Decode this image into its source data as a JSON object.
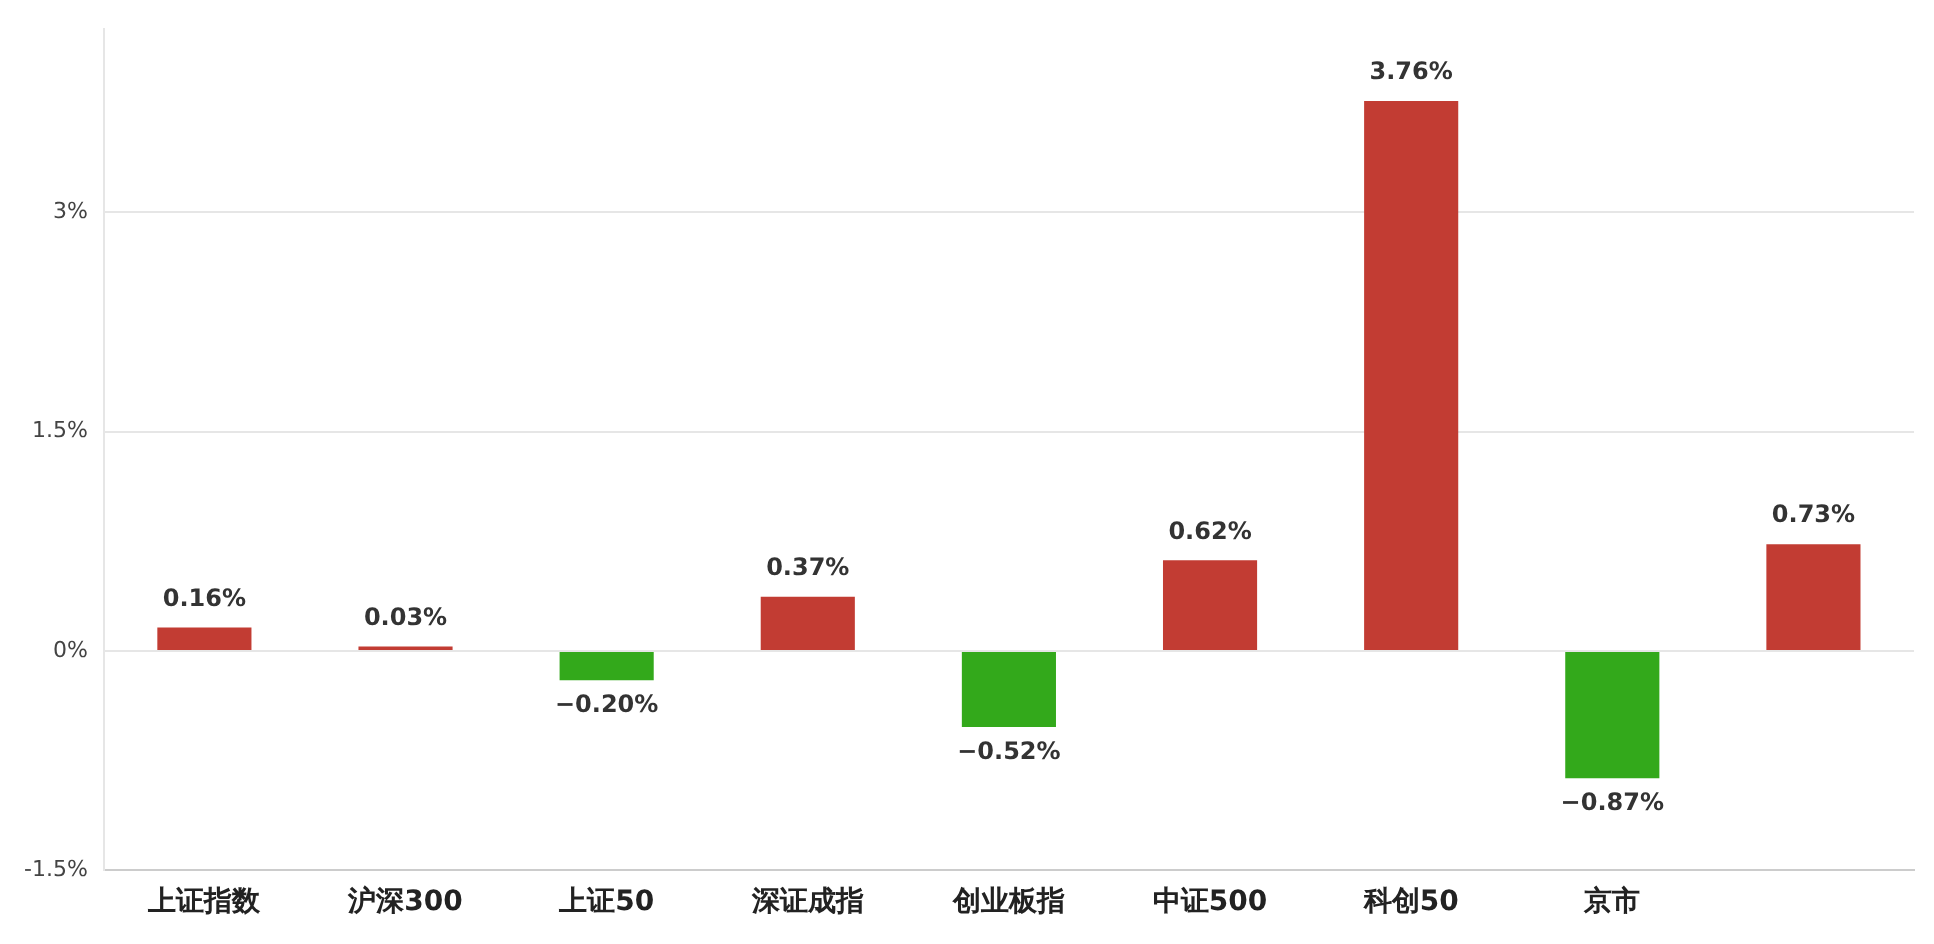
{
  "chart_data": {
    "type": "bar",
    "categories": [
      "上证指数",
      "沪深300",
      "上证50",
      "深证成指",
      "创业板指",
      "中证500",
      "科创50",
      "京市",
      null
    ],
    "values": [
      0.16,
      0.03,
      -0.2,
      0.37,
      -0.52,
      0.62,
      3.76,
      -0.87,
      0.73
    ],
    "colors": [
      "#c23c33",
      "#c23c33",
      "#33a91b",
      "#c23c33",
      "#33a91b",
      "#c23c33",
      "#c23c33",
      "#33a91b",
      "#c23c33"
    ],
    "value_labels": [
      "0.16%",
      "0.03%",
      "−0.20%",
      "0.37%",
      "−0.52%",
      "0.62%",
      "3.76%",
      "−0.87%",
      "0.73%"
    ],
    "ylim": [
      -1.5,
      4.25
    ],
    "yticks": [
      {
        "value": -1.5,
        "label": "-1.5%"
      },
      {
        "value": 0,
        "label": "0%"
      },
      {
        "value": 1.5,
        "label": "1.5%"
      },
      {
        "value": 3,
        "label": "3%"
      }
    ],
    "grid": "y",
    "legend": false
  }
}
